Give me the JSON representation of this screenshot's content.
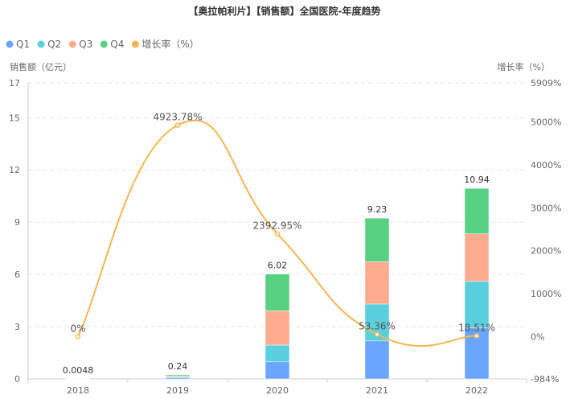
{
  "chart_data": {
    "type": "bar",
    "title": "【奥拉帕利片】【销售额】全国医院-年度趋势",
    "categories": [
      "2018",
      "2019",
      "2020",
      "2021",
      "2022"
    ],
    "series": [
      {
        "name": "Q1",
        "color": "#6aa6ff",
        "values": [
          0.0012,
          0.06,
          0.98,
          2.18,
          2.94
        ]
      },
      {
        "name": "Q2",
        "color": "#5ad0df",
        "values": [
          0.0012,
          0.06,
          0.96,
          2.12,
          2.66
        ]
      },
      {
        "name": "Q3",
        "color": "#fdab8e",
        "values": [
          0.0012,
          0.06,
          1.97,
          2.43,
          2.73
        ]
      },
      {
        "name": "Q4",
        "color": "#58d183",
        "values": [
          0.0012,
          0.06,
          2.11,
          2.5,
          2.61
        ]
      }
    ],
    "totals": [
      "0.0048",
      "0.24",
      "6.02",
      "9.23",
      "10.94"
    ],
    "line": {
      "name": "增长率（%）",
      "color": "#f7b552",
      "values": [
        0,
        4923.78,
        2392.95,
        53.36,
        18.51
      ],
      "labels": [
        "0%",
        "4923.78%",
        "2392.95%",
        "53.36%",
        "18.51%"
      ]
    },
    "ylabel": "销售额（亿元）",
    "y2label": "增长率（%）",
    "ylim": [
      0,
      17
    ],
    "yticks": [
      "0",
      "3",
      "6",
      "9",
      "12",
      "15",
      "17"
    ],
    "y2lim": [
      -984,
      5909
    ],
    "y2ticks": [
      "-984%",
      "0%",
      "1000%",
      "2000%",
      "3000%",
      "4000%",
      "5000%",
      "5909%"
    ],
    "legend": [
      "Q1",
      "Q2",
      "Q3",
      "Q4",
      "增长率（%）"
    ],
    "legend_position": "top-left",
    "grid": true
  }
}
